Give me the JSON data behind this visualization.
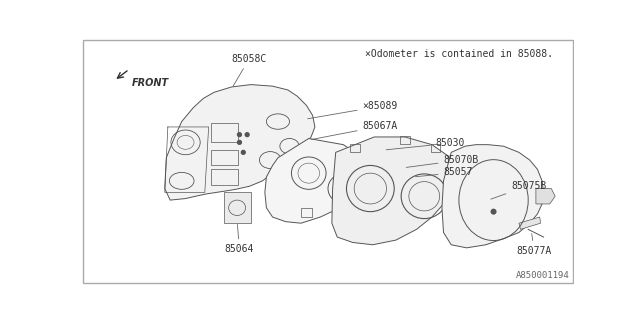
{
  "background_color": "#ffffff",
  "line_color": "#555555",
  "text_color": "#333333",
  "title_note": "×Odometer is contained in 85088.",
  "watermark": "A850001194",
  "front_label": "FRONT",
  "note_symbol": "×"
}
